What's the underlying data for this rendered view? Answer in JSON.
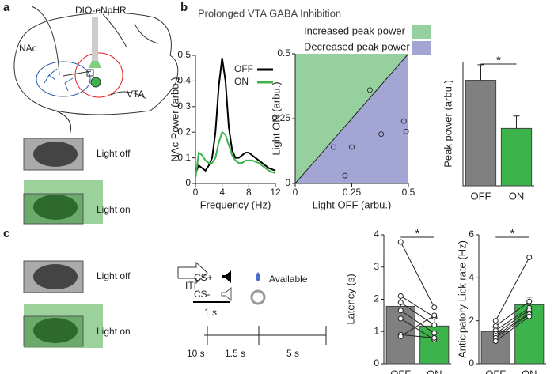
{
  "panels": {
    "a": "a",
    "b": "b",
    "c": "c"
  },
  "anatomy": {
    "virus": "DIO-eNpHR",
    "nac": "NAc",
    "vta": "VTA"
  },
  "mice": {
    "off_a": "Light off",
    "on_a": "Light on",
    "off_c": "Light off",
    "on_c": "Light on"
  },
  "task": {
    "iti": "ITI",
    "cs_plus": "CS+",
    "cs_minus": "CS-",
    "available": "Available",
    "cue_duration": "1 s",
    "phases": [
      "10 s",
      "1.5 s",
      "5 s"
    ]
  },
  "chart_data": [
    {
      "type": "line",
      "title": "Prolonged VTA GABA Inhibition",
      "x_label": "Frequency (Hz)",
      "y_label": "NAc Power (arbu.)",
      "x": [
        0,
        0.5,
        1,
        1.5,
        2,
        2.5,
        3,
        3.5,
        4,
        4.5,
        5,
        5.5,
        6,
        6.5,
        7,
        7.5,
        8,
        8.5,
        9,
        9.5,
        10,
        10.5,
        11,
        11.5,
        12
      ],
      "series": [
        {
          "name": "OFF",
          "color": "#000000",
          "values": [
            0.04,
            0.07,
            0.06,
            0.05,
            0.07,
            0.1,
            0.2,
            0.38,
            0.49,
            0.4,
            0.22,
            0.13,
            0.1,
            0.1,
            0.11,
            0.12,
            0.12,
            0.11,
            0.1,
            0.09,
            0.08,
            0.07,
            0.06,
            0.055,
            0.05
          ]
        },
        {
          "name": "ON",
          "color": "#3cb44b",
          "values": [
            0.02,
            0.12,
            0.11,
            0.09,
            0.08,
            0.08,
            0.1,
            0.16,
            0.2,
            0.19,
            0.15,
            0.11,
            0.09,
            0.08,
            0.08,
            0.09,
            0.09,
            0.09,
            0.085,
            0.08,
            0.07,
            0.06,
            0.05,
            0.045,
            0.04
          ]
        }
      ],
      "xlim": [
        0,
        12
      ],
      "xticks": [
        0,
        4,
        8,
        12
      ],
      "ylim": [
        0,
        0.5
      ],
      "yticks": [
        0,
        0.1,
        0.2,
        0.3,
        0.4,
        0.5
      ]
    },
    {
      "type": "scatter",
      "x_label": "Light OFF (arbu.)",
      "y_label": "Light ON (arbu.)",
      "regions": [
        {
          "name": "Increased peak power",
          "color": "#97d09f"
        },
        {
          "name": "Decreased peak power",
          "color": "#a3a5d5"
        }
      ],
      "x": [
        0.17,
        0.22,
        0.25,
        0.33,
        0.38,
        0.48,
        0.49
      ],
      "values": [
        0.14,
        0.03,
        0.14,
        0.36,
        0.19,
        0.24,
        0.2
      ],
      "xlim": [
        0,
        0.5
      ],
      "xticks": [
        0,
        0.25,
        0.5
      ],
      "ylim": [
        0,
        0.5
      ],
      "yticks": [
        0,
        0.25,
        0.5
      ]
    },
    {
      "type": "bar",
      "y_label": "Peak power (arbu.)",
      "categories": [
        "OFF",
        "ON"
      ],
      "values": [
        0.34,
        0.185
      ],
      "errors": [
        0.05,
        0.04
      ],
      "colors": [
        "#808080",
        "#3cb44b"
      ],
      "ylim": [
        0,
        0.4
      ],
      "annotation": "*"
    },
    {
      "type": "bar",
      "y_label": "Latency (s)",
      "categories": [
        "OFF",
        "ON"
      ],
      "values": [
        1.78,
        1.17
      ],
      "errors": [
        0.3,
        0.25
      ],
      "individual": [
        [
          3.78,
          2.1,
          1.9,
          1.65,
          1.4,
          0.9,
          0.85
        ],
        [
          1.75,
          1.45,
          1.2,
          0.95,
          0.75,
          0.8,
          1.5
        ]
      ],
      "colors": [
        "#808080",
        "#3cb44b"
      ],
      "ylim": [
        0,
        4
      ],
      "yticks": [
        0,
        1,
        2,
        3,
        4
      ],
      "annotation": "*"
    },
    {
      "type": "bar",
      "y_label": "Anticipatory Lick rate (Hz)",
      "categories": [
        "OFF",
        "ON"
      ],
      "values": [
        1.5,
        2.75
      ],
      "errors": [
        0.2,
        0.35
      ],
      "individual": [
        [
          2.0,
          1.75,
          1.55,
          1.4,
          1.3,
          1.2,
          1.05
        ],
        [
          4.95,
          2.9,
          2.6,
          2.5,
          2.35,
          2.3,
          2.2
        ]
      ],
      "colors": [
        "#808080",
        "#3cb44b"
      ],
      "ylim": [
        0,
        6
      ],
      "yticks": [
        0,
        2,
        4,
        6
      ],
      "annotation": "*"
    }
  ]
}
